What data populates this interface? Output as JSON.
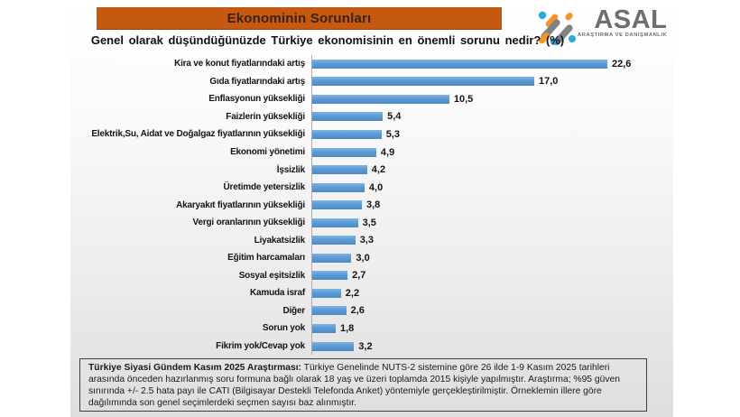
{
  "banner": {
    "title": "Ekonominin Sorunları"
  },
  "logo": {
    "name": "ASAL",
    "tagline": "ARAŞTIRMA VE DANIŞMANLIK",
    "colors": {
      "gray": "#6d6e71",
      "blue": "#29abe2",
      "orange": "#f7941d"
    }
  },
  "subtitle": "Genel olarak düşündüğünüzde Türkiye ekonomisinin en önemli sorunu nedir? (%)",
  "chart_data": {
    "type": "bar",
    "orientation": "horizontal",
    "title": "Ekonominin Sorunları",
    "xlabel": "",
    "ylabel": "",
    "xlim": [
      0,
      24
    ],
    "grid": false,
    "legend": false,
    "bar_color": "#5b9bd5",
    "axis_line_color": "#ababab",
    "categories": [
      "Kira ve konut fiyatlarındaki artış",
      "Gıda fiyatlarındaki artış",
      "Enflasyonun yüksekliği",
      "Faizlerin yüksekliği",
      "Elektrik,Su, Aidat ve Doğalgaz fiyatlarının yüksekliği",
      "Ekonomi yönetimi",
      "İşsizlik",
      "Üretimde yetersizlik",
      "Akaryakıt fiyatlarının yüksekliği",
      "Vergi oranlarının yüksekliği",
      "Liyakatsizlik",
      "Eğitim harcamaları",
      "Sosyal eşitsizlik",
      "Kamuda israf",
      "Diğer",
      "Sorun yok",
      "Fikrim yok/Cevap yok"
    ],
    "values": [
      22.6,
      17.0,
      10.5,
      5.4,
      5.3,
      4.9,
      4.2,
      4.0,
      3.8,
      3.5,
      3.3,
      3.0,
      2.7,
      2.2,
      2.6,
      1.8,
      3.2
    ],
    "value_labels": [
      "22,6",
      "17,0",
      "10,5",
      "5,4",
      "5,3",
      "4,9",
      "4,2",
      "4,0",
      "3,8",
      "3,5",
      "3,3",
      "3,0",
      "2,7",
      "2,2",
      "2,6",
      "1,8",
      "3,2"
    ]
  },
  "footnote": {
    "bold": "Türkiye Siyasi Gündem Kasım 2025 Araştırması:",
    "text": " Türkiye Genelinde NUTS-2 sistemine göre 26 ilde 1-9 Kasım 2025 tarihleri arasında önceden hazırlanmış soru formuna bağlı olarak 18 yaş ve üzeri toplamda 2015 kişiyle yapılmıştır. Araştırma; %95 güven sınırında +/- 2.5 hata payı ile CATI (Bilgisayar Destekli Telefonda Anket) yöntemiyle gerçekleştirilmiştir. Örneklemin illere göre dağılımında son genel seçimlerdeki seçmen sayısı baz alınmıştır."
  }
}
